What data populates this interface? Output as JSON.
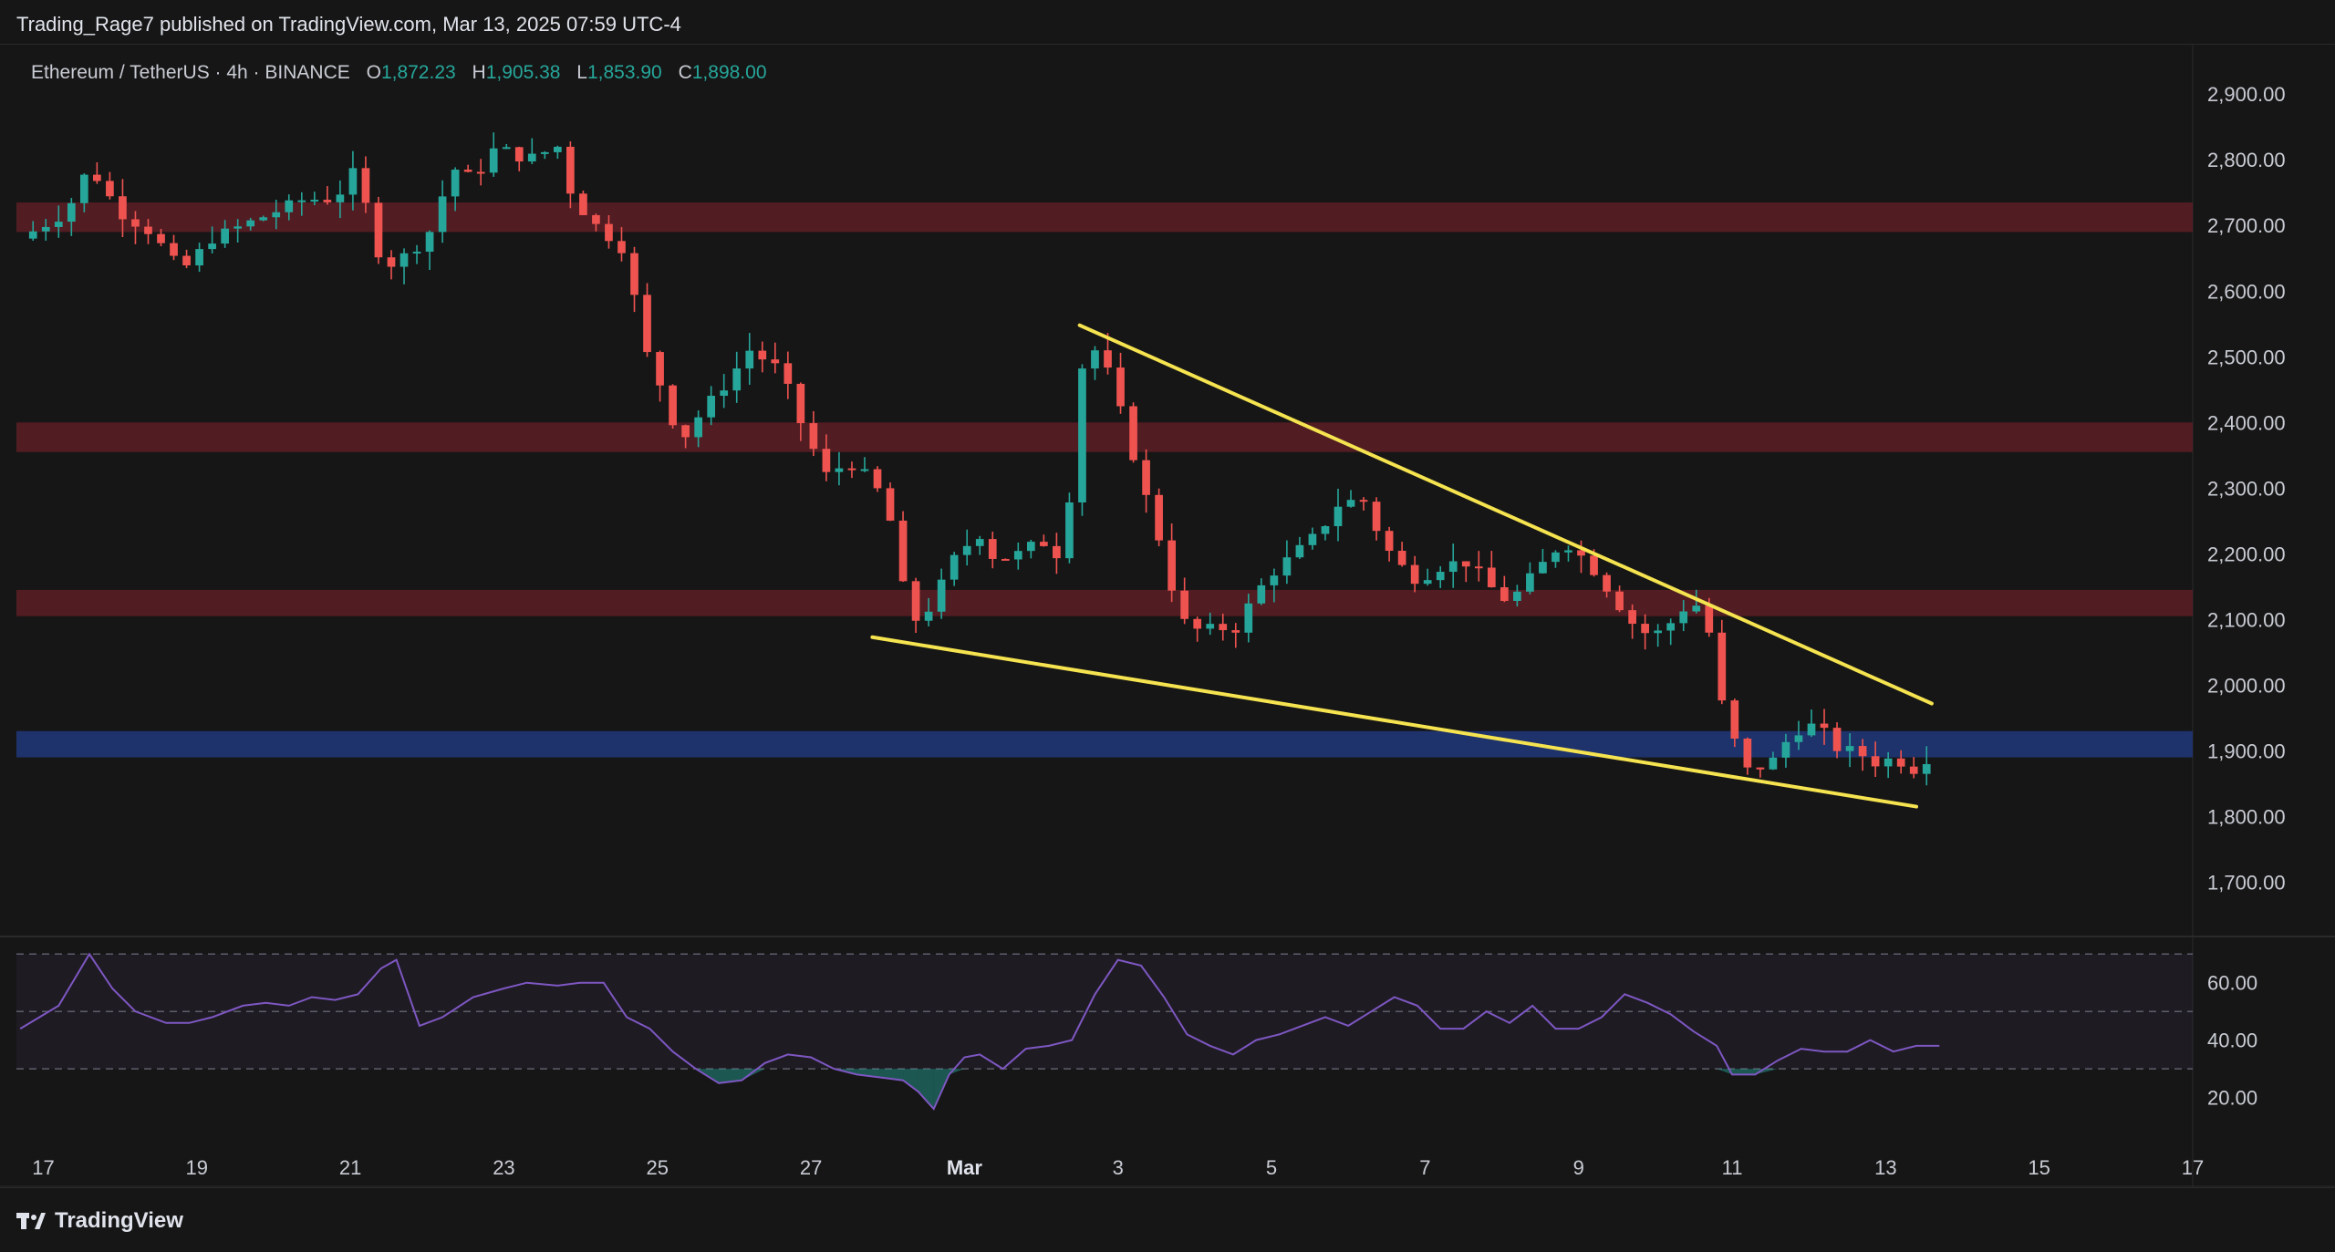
{
  "header": {
    "publisher_text": "Trading_Rage7 published on TradingView.com, Mar 13, 2025 07:59 UTC-4"
  },
  "legend": {
    "symbol": "Ethereum / TetherUS · 4h · BINANCE",
    "o_label": "O",
    "o_value": "1,872.23",
    "h_label": "H",
    "h_value": "1,905.38",
    "l_label": "L",
    "l_value": "1,853.90",
    "c_label": "C",
    "c_value": "1,898.00"
  },
  "footer": {
    "brand": "TradingView"
  },
  "colors": {
    "background": "#161616",
    "up": "#26a69a",
    "down": "#ef5350",
    "resistance_zone": "#5c1d24",
    "support_zone": "#1f3470",
    "trendline": "#f5e350",
    "rsi_line": "#7e57c2"
  },
  "chart_data": [
    {
      "type": "candlestick",
      "title": "",
      "timeframe": "4h",
      "ylim": [
        1620,
        2960
      ],
      "y_ticks": [
        "2,900.00",
        "2,800.00",
        "2,700.00",
        "2,600.00",
        "2,500.00",
        "2,400.00",
        "2,300.00",
        "2,200.00",
        "2,100.00",
        "2,000.00",
        "1,900.00",
        "1,800.00",
        "1,700.00"
      ],
      "y_tick_values": [
        2900,
        2800,
        2700,
        2600,
        2500,
        2400,
        2300,
        2200,
        2100,
        2000,
        1900,
        1800,
        1700
      ],
      "x_ticks": [
        "17",
        "19",
        "21",
        "23",
        "25",
        "27",
        "Mar",
        "3",
        "5",
        "7",
        "9",
        "11",
        "13",
        "15",
        "17"
      ],
      "x_tick_days": [
        0,
        2,
        4,
        6,
        8,
        10,
        12,
        14,
        16,
        18,
        20,
        22,
        24,
        26,
        28
      ],
      "x_range_days": [
        -0.35,
        28.0
      ],
      "zones": [
        {
          "kind": "resistance",
          "low": 2690,
          "high": 2735
        },
        {
          "kind": "resistance",
          "low": 2355,
          "high": 2400
        },
        {
          "kind": "resistance",
          "low": 2105,
          "high": 2145
        },
        {
          "kind": "support",
          "low": 1890,
          "high": 1930
        }
      ],
      "trendlines": [
        {
          "name": "upper",
          "from": [
            13.5,
            2548
          ],
          "to": [
            24.6,
            1972
          ]
        },
        {
          "name": "lower",
          "from": [
            10.8,
            2073
          ],
          "to": [
            24.4,
            1815
          ]
        }
      ],
      "price_path": [
        [
          -0.3,
          2680
        ],
        [
          0.3,
          2720
        ],
        [
          0.6,
          2790
        ],
        [
          1.0,
          2720
        ],
        [
          1.4,
          2690
        ],
        [
          1.8,
          2630
        ],
        [
          2.2,
          2680
        ],
        [
          2.6,
          2700
        ],
        [
          3.0,
          2720
        ],
        [
          3.4,
          2740
        ],
        [
          3.8,
          2740
        ],
        [
          4.1,
          2790
        ],
        [
          4.3,
          2670
        ],
        [
          4.5,
          2640
        ],
        [
          4.8,
          2660
        ],
        [
          5.1,
          2700
        ],
        [
          5.3,
          2790
        ],
        [
          5.6,
          2770
        ],
        [
          5.9,
          2820
        ],
        [
          6.3,
          2800
        ],
        [
          6.7,
          2820
        ],
        [
          6.9,
          2740
        ],
        [
          7.2,
          2700
        ],
        [
          7.6,
          2660
        ],
        [
          7.8,
          2520
        ],
        [
          8.0,
          2470
        ],
        [
          8.3,
          2370
        ],
        [
          8.6,
          2420
        ],
        [
          8.9,
          2460
        ],
        [
          9.2,
          2510
        ],
        [
          9.6,
          2480
        ],
        [
          9.9,
          2390
        ],
        [
          10.2,
          2320
        ],
        [
          10.5,
          2340
        ],
        [
          10.8,
          2310
        ],
        [
          11.0,
          2270
        ],
        [
          11.2,
          2150
        ],
        [
          11.4,
          2090
        ],
        [
          11.6,
          2130
        ],
        [
          11.9,
          2200
        ],
        [
          12.2,
          2230
        ],
        [
          12.4,
          2190
        ],
        [
          12.7,
          2200
        ],
        [
          13.0,
          2220
        ],
        [
          13.3,
          2190
        ],
        [
          13.5,
          2480
        ],
        [
          13.7,
          2510
        ],
        [
          13.9,
          2470
        ],
        [
          14.1,
          2390
        ],
        [
          14.3,
          2310
        ],
        [
          14.6,
          2200
        ],
        [
          14.8,
          2100
        ],
        [
          15.1,
          2080
        ],
        [
          15.3,
          2090
        ],
        [
          15.5,
          2080
        ],
        [
          15.8,
          2140
        ],
        [
          16.0,
          2170
        ],
        [
          16.3,
          2200
        ],
        [
          16.6,
          2230
        ],
        [
          16.9,
          2280
        ],
        [
          17.2,
          2280
        ],
        [
          17.4,
          2230
        ],
        [
          17.6,
          2190
        ],
        [
          17.9,
          2160
        ],
        [
          18.2,
          2180
        ],
        [
          18.5,
          2190
        ],
        [
          18.7,
          2170
        ],
        [
          19.0,
          2130
        ],
        [
          19.2,
          2140
        ],
        [
          19.5,
          2180
        ],
        [
          19.8,
          2220
        ],
        [
          20.1,
          2190
        ],
        [
          20.3,
          2160
        ],
        [
          20.6,
          2110
        ],
        [
          20.8,
          2080
        ],
        [
          21.1,
          2080
        ],
        [
          21.3,
          2110
        ],
        [
          21.5,
          2130
        ],
        [
          21.7,
          2080
        ],
        [
          21.9,
          1950
        ],
        [
          22.2,
          1870
        ],
        [
          22.5,
          1880
        ],
        [
          22.8,
          1930
        ],
        [
          23.1,
          1940
        ],
        [
          23.4,
          1900
        ],
        [
          23.6,
          1900
        ],
        [
          23.9,
          1880
        ],
        [
          24.1,
          1890
        ],
        [
          24.4,
          1870
        ],
        [
          24.6,
          1898
        ]
      ]
    },
    {
      "type": "line",
      "title": "",
      "ylim": [
        10,
        72
      ],
      "y_ticks": [
        "60.00",
        "40.00",
        "20.00"
      ],
      "y_tick_values": [
        60,
        40,
        20
      ],
      "band_upper": 70,
      "band_middle": 50,
      "band_lower": 30,
      "series": [
        {
          "x": [
            -0.3,
            0.2,
            0.6,
            0.9,
            1.2,
            1.6,
            1.9,
            2.2,
            2.6,
            2.9,
            3.2,
            3.5,
            3.8,
            4.1,
            4.4,
            4.6,
            4.9,
            5.2,
            5.6,
            6.0,
            6.3,
            6.7,
            7.0,
            7.3,
            7.6,
            7.9,
            8.2,
            8.5,
            8.8,
            9.1,
            9.4,
            9.7,
            10.0,
            10.3,
            10.6,
            10.9,
            11.2,
            11.4,
            11.6,
            11.8,
            12.0,
            12.2,
            12.5,
            12.8,
            13.1,
            13.4,
            13.7,
            14.0,
            14.3,
            14.6,
            14.9,
            15.2,
            15.5,
            15.8,
            16.1,
            16.4,
            16.7,
            17.0,
            17.3,
            17.6,
            17.9,
            18.2,
            18.5,
            18.8,
            19.1,
            19.4,
            19.7,
            20.0,
            20.3,
            20.6,
            20.9,
            21.2,
            21.5,
            21.8,
            22.0,
            22.3,
            22.6,
            22.9,
            23.2,
            23.5,
            23.8,
            24.1,
            24.4,
            24.7
          ],
          "y": [
            44,
            52,
            70,
            58,
            50,
            46,
            46,
            48,
            52,
            53,
            52,
            55,
            54,
            56,
            65,
            68,
            45,
            48,
            55,
            58,
            60,
            59,
            60,
            60,
            48,
            44,
            36,
            30,
            25,
            26,
            32,
            35,
            34,
            30,
            28,
            27,
            26,
            22,
            16,
            28,
            34,
            35,
            30,
            37,
            38,
            40,
            56,
            68,
            66,
            55,
            42,
            38,
            35,
            40,
            42,
            45,
            48,
            45,
            50,
            55,
            52,
            44,
            44,
            50,
            46,
            52,
            44,
            44,
            48,
            56,
            53,
            49,
            43,
            38,
            28,
            28,
            33,
            37,
            36,
            36,
            40,
            36,
            38,
            38
          ]
        }
      ]
    }
  ]
}
